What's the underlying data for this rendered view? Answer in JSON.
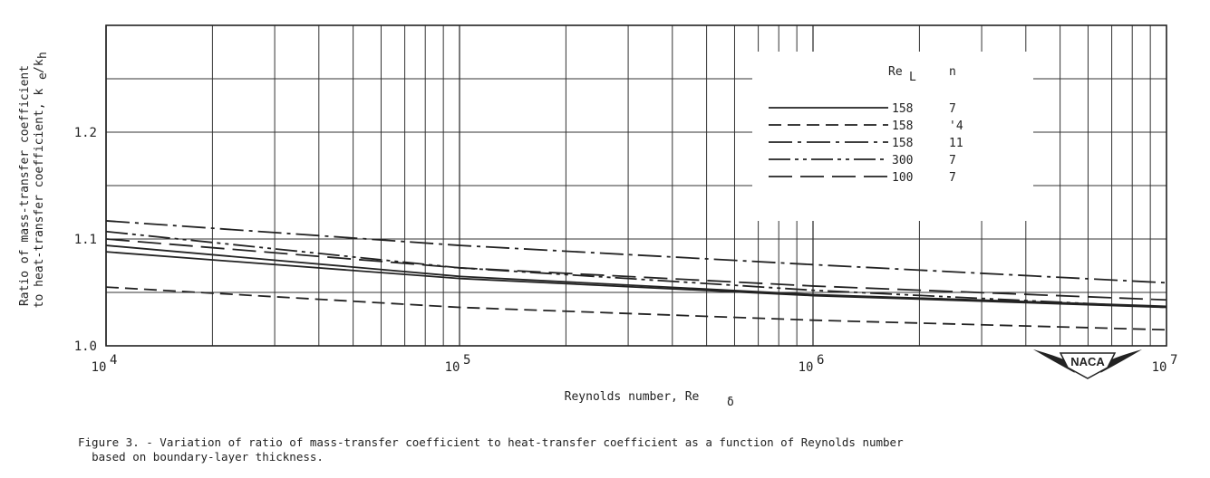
{
  "chart_data": {
    "type": "line",
    "x_scale": "log",
    "xlim": [
      10000,
      10000000
    ],
    "ylim": [
      1.0,
      1.3
    ],
    "ylabel_line1": "Ratio of mass-transfer coefficient",
    "ylabel_line2": "to heat-transfer coefficient, k",
    "ylabel_sub_e": "e",
    "ylabel_slash": "/k",
    "ylabel_sub_h": "h",
    "xlabel_main": "Reynolds number, Re",
    "xlabel_sub": "δ",
    "y_tick_labels": [
      "1.0",
      "1.1",
      "1.2"
    ],
    "y_tick_values": [
      1.0,
      1.1,
      1.2
    ],
    "x_tick_base": "10",
    "x_tick_exponents": [
      "4",
      "5",
      "6",
      "7"
    ],
    "x_tick_values": [
      10000,
      100000,
      1000000,
      10000000
    ],
    "grid": true,
    "legend": {
      "placement": "top-right",
      "header_re": "Re",
      "header_re_sub": "L",
      "header_n": "n",
      "entries": [
        {
          "re_l": "158",
          "n": "7",
          "style": "solid"
        },
        {
          "re_l": "158",
          "n": "'4",
          "style": "short-dash"
        },
        {
          "re_l": "158",
          "n": "11",
          "style": "long-dash-dot"
        },
        {
          "re_l": "300",
          "n": "7",
          "style": "long-dash-dot-dot"
        },
        {
          "re_l": "100",
          "n": "7",
          "style": "long-dash"
        }
      ]
    },
    "series": [
      {
        "style": "long-dash-dot",
        "x": [
          10000,
          100000,
          1000000,
          10000000
        ],
        "y": [
          1.117,
          1.094,
          1.076,
          1.059
        ]
      },
      {
        "style": "long-dash-dot-dot",
        "x": [
          10000,
          100000,
          1000000,
          10000000
        ],
        "y": [
          1.107,
          1.073,
          1.052,
          1.036
        ]
      },
      {
        "style": "long-dash",
        "x": [
          10000,
          100000,
          1000000,
          10000000
        ],
        "y": [
          1.1,
          1.073,
          1.056,
          1.043
        ]
      },
      {
        "style": "solid",
        "x": [
          10000,
          100000,
          1000000,
          10000000
        ],
        "y": [
          1.094,
          1.065,
          1.048,
          1.037
        ]
      },
      {
        "style": "solid",
        "x": [
          10000,
          100000,
          1000000,
          10000000
        ],
        "y": [
          1.088,
          1.063,
          1.047,
          1.036
        ]
      },
      {
        "style": "short-dash",
        "x": [
          10000,
          100000,
          1000000,
          10000000
        ],
        "y": [
          1.055,
          1.036,
          1.024,
          1.015
        ]
      }
    ]
  },
  "stamp": {
    "text": "NACA"
  },
  "caption": {
    "line1": "Figure 3. - Variation of ratio of mass-transfer coefficient to heat-transfer coefficient as a function of Reynolds number",
    "line2": "  based on boundary-layer thickness."
  },
  "colors": {
    "ink": "#222222",
    "grid": "#333333",
    "background": "#ffffff"
  }
}
